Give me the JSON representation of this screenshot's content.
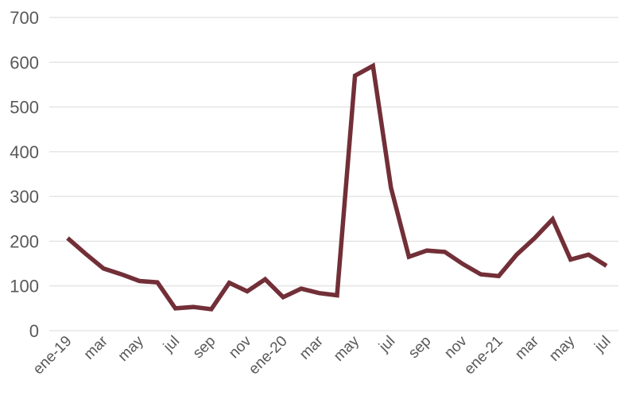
{
  "chart_data": {
    "type": "line",
    "title": "",
    "xlabel": "",
    "ylabel": "",
    "ylim": [
      0,
      700
    ],
    "yticks": [
      0,
      100,
      200,
      300,
      400,
      500,
      600,
      700
    ],
    "grid": true,
    "legend": "none",
    "x_tick_labels": [
      "ene-19",
      "mar",
      "may",
      "jul",
      "sep",
      "nov",
      "ene-20",
      "mar",
      "may",
      "jul",
      "sep",
      "nov",
      "ene-21",
      "mar",
      "may",
      "jul"
    ],
    "categories": [
      "ene-19",
      "feb-19",
      "mar-19",
      "abr-19",
      "may-19",
      "jun-19",
      "jul-19",
      "ago-19",
      "sep-19",
      "oct-19",
      "nov-19",
      "dic-19",
      "ene-20",
      "feb-20",
      "mar-20",
      "abr-20",
      "may-20",
      "jun-20",
      "jul-20",
      "ago-20",
      "sep-20",
      "oct-20",
      "nov-20",
      "dic-20",
      "ene-21",
      "feb-21",
      "mar-21",
      "abr-21",
      "may-21",
      "jun-21",
      "jul-21"
    ],
    "series": [
      {
        "color": "#722F37",
        "values": [
          207,
          172,
          139,
          126,
          111,
          108,
          50,
          53,
          48,
          107,
          88,
          115,
          75,
          94,
          84,
          79,
          570,
          592,
          320,
          165,
          179,
          176,
          149,
          126,
          122,
          170,
          207,
          249,
          159,
          170,
          145
        ]
      }
    ]
  }
}
